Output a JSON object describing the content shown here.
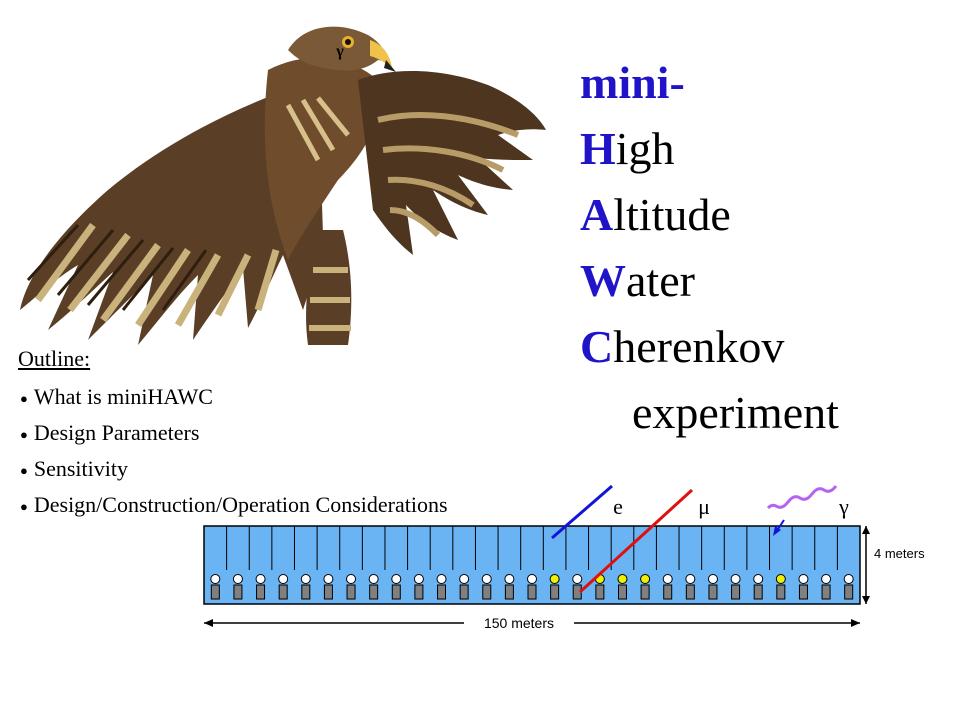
{
  "logo": {
    "icon": "hawk-icon",
    "gamma": "γ"
  },
  "title": {
    "first": "mini-",
    "words": [
      {
        "initial": "H",
        "rest": "igh"
      },
      {
        "initial": "A",
        "rest": "ltitude"
      },
      {
        "initial": "W",
        "rest": "ater"
      },
      {
        "initial": "C",
        "rest": "herenkov"
      }
    ],
    "last": "experiment"
  },
  "outline": {
    "heading": "Outline:",
    "items": [
      "What is miniHAWC",
      "Design Parameters",
      "Sensitivity",
      "Design/Construction/Operation Considerations"
    ]
  },
  "diagram": {
    "particles": [
      "e",
      "μ",
      "γ"
    ],
    "width_label": "150 meters",
    "height_label": "4 meters",
    "tank_count": 29,
    "hit_tanks": [
      15,
      17,
      18,
      19,
      25
    ],
    "colors": {
      "tank_fill": "#6ab4f4",
      "electron": "#1414d8",
      "muon": "#e01010",
      "gamma": "#b464f0",
      "hit_pmt": "#f0f000",
      "title_accent": "#1f14c8"
    }
  }
}
